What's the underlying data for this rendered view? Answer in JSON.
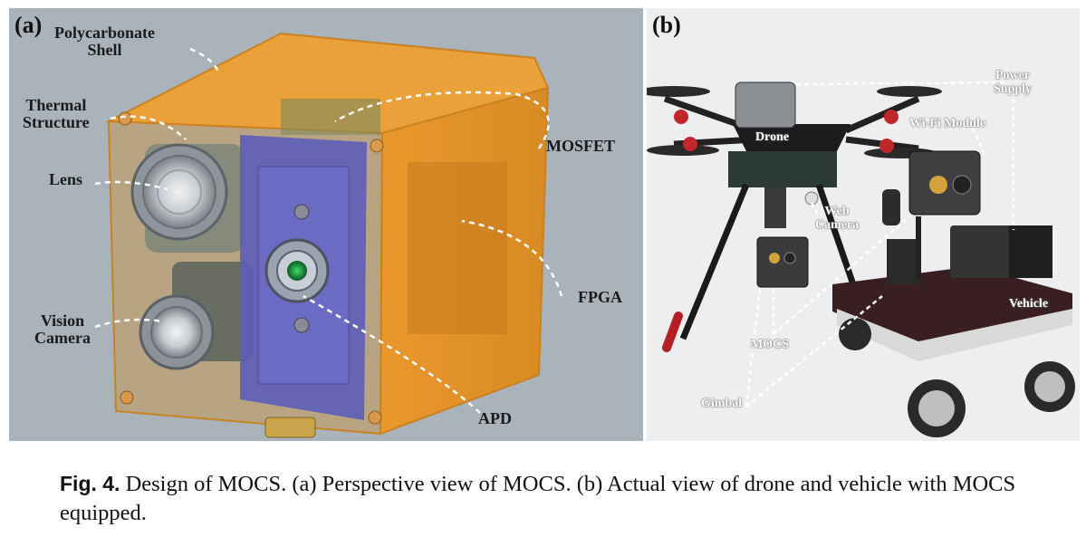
{
  "panel_a": {
    "letter": "(a)",
    "labels": {
      "shell": "Polycarbonate\nShell",
      "thermal": "Thermal\nStructure",
      "lens": "Lens",
      "vision": "Vision\nCamera",
      "mosfet": "MOSFET",
      "fpga": "FPGA",
      "apd": "APD"
    }
  },
  "panel_b": {
    "letter": "(b)",
    "labels": {
      "power": "Power\nSupply",
      "drone": "Drone",
      "wifi": "Wi-Fi Module",
      "webcam": "Web\nCamera",
      "vehicle": "Vehicle",
      "mocs": "MOCS",
      "gimbal": "Gimbal"
    }
  },
  "caption": {
    "fig_label": "Fig. 4.",
    "text": "Design of MOCS. (a) Perspective view of MOCS. (b) Actual view of drone and vehicle with MOCS equipped."
  },
  "colors": {
    "panel_a_bg": "#aab2ba",
    "shell_orange": "#e89a2e",
    "pcb_blue": "#5e5eb8",
    "apd_green": "#1f8a3a"
  }
}
